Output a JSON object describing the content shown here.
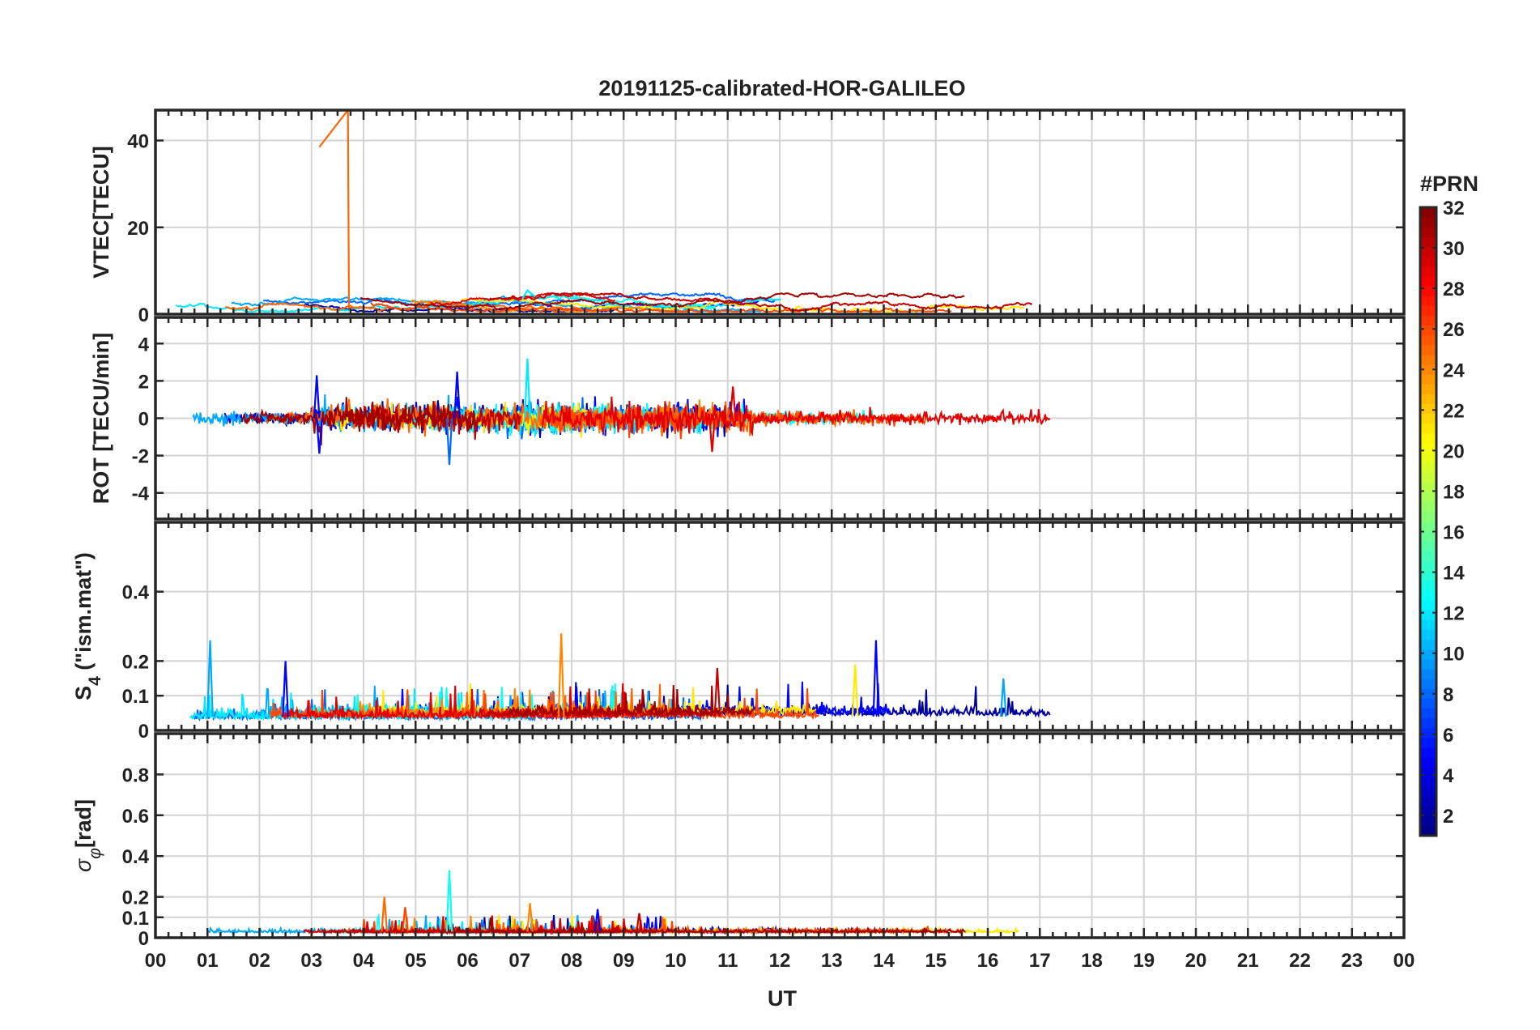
{
  "chart_data": {
    "type": "line",
    "title": "20191125-calibrated-HOR-GALILEO",
    "xlabel": "UT",
    "xlim": [
      0,
      24
    ],
    "x_tick_labels": [
      "00",
      "01",
      "02",
      "03",
      "04",
      "05",
      "06",
      "07",
      "08",
      "09",
      "10",
      "11",
      "12",
      "13",
      "14",
      "15",
      "16",
      "17",
      "18",
      "19",
      "20",
      "21",
      "22",
      "23",
      "00"
    ],
    "data_span_hours": [
      0,
      17.2
    ],
    "grid": true,
    "panels": [
      {
        "name": "vtec",
        "ylabel": "VTEC[TECU]",
        "ylim": [
          0,
          47
        ],
        "yticks": [
          0,
          20,
          40
        ],
        "ytick_labels": [
          "0",
          "20",
          "40"
        ],
        "typical_range": [
          1,
          5
        ],
        "features": [
          {
            "prn": 25,
            "x": [
              3.15,
              3.7,
              3.7,
              3.72,
              4.2
            ],
            "y": [
              38.5,
              47,
              47,
              1.5,
              1.5
            ]
          },
          {
            "prn": 12,
            "x": [
              7.05,
              7.15,
              7.3
            ],
            "y": [
              3.5,
              5.5,
              4.0
            ]
          }
        ]
      },
      {
        "name": "rot",
        "ylabel": "ROT [TECU/min]",
        "ylim": [
          -5.4,
          5.4
        ],
        "yticks": [
          -4,
          -2,
          0,
          2,
          4
        ],
        "ytick_labels": [
          "-4",
          "-2",
          "0",
          "2",
          "4"
        ],
        "typical_amplitude": 0.5,
        "features": [
          {
            "prn": 12,
            "x": 7.15,
            "y": 3.2
          },
          {
            "prn": 8,
            "x": 5.65,
            "y": -2.5
          },
          {
            "prn": 5,
            "x": 3.1,
            "y": 2.3
          },
          {
            "prn": 5,
            "x": 3.15,
            "y": -1.9
          },
          {
            "prn": 5,
            "x": 5.8,
            "y": 2.5
          },
          {
            "prn": 29,
            "x": 10.7,
            "y": -1.8
          },
          {
            "prn": 29,
            "x": 11.1,
            "y": 1.7
          }
        ]
      },
      {
        "name": "s4",
        "ylabel": "S4 (\"ism.mat\")",
        "ylabel_main": "S",
        "ylabel_sub": "4",
        "ylabel_rest": " (\"ism.mat\")",
        "ylim": [
          0,
          0.6
        ],
        "yticks": [
          0,
          0.1,
          0.2,
          0.4
        ],
        "ytick_labels": [
          "0",
          "0.1",
          "0.2",
          "0.4"
        ],
        "features": [
          {
            "prn": 10,
            "x": 1.05,
            "y": 0.26
          },
          {
            "prn": 24,
            "x": 7.8,
            "y": 0.28
          },
          {
            "prn": 5,
            "x": 13.85,
            "y": 0.26
          },
          {
            "prn": 21,
            "x": 13.45,
            "y": 0.19
          },
          {
            "prn": 5,
            "x": 2.5,
            "y": 0.2
          },
          {
            "prn": 30,
            "x": 10.8,
            "y": 0.18
          },
          {
            "prn": 10,
            "x": 16.3,
            "y": 0.15
          }
        ]
      },
      {
        "name": "sigma_phi",
        "ylabel": "σφ[rad]",
        "ylabel_main": "σ",
        "ylabel_sub": "φ",
        "ylabel_rest": "[rad]",
        "ylim": [
          0,
          1.0
        ],
        "yticks": [
          0,
          0.1,
          0.2,
          0.4,
          0.6,
          0.8
        ],
        "ytick_labels": [
          "0",
          "0.1",
          "0.2",
          "0.4",
          "0.6",
          "0.8"
        ],
        "features": [
          {
            "prn": 13,
            "x": 5.65,
            "y": 0.33
          },
          {
            "prn": 25,
            "x": 4.4,
            "y": 0.2
          },
          {
            "prn": 26,
            "x": 4.8,
            "y": 0.15
          },
          {
            "prn": 24,
            "x": 7.2,
            "y": 0.17
          },
          {
            "prn": 5,
            "x": 8.5,
            "y": 0.14
          },
          {
            "prn": 30,
            "x": 9.3,
            "y": 0.12
          }
        ]
      }
    ],
    "colorbar": {
      "label": "#PRN",
      "range": [
        1,
        32
      ],
      "ticks": [
        2,
        4,
        6,
        8,
        10,
        12,
        14,
        16,
        18,
        20,
        22,
        24,
        26,
        28,
        30,
        32
      ],
      "tick_labels": [
        "2",
        "4",
        "6",
        "8",
        "10",
        "12",
        "14",
        "16",
        "18",
        "20",
        "22",
        "24",
        "26",
        "28",
        "30",
        "32"
      ],
      "colormap": "jet"
    },
    "series": [
      {
        "prn": 2
      },
      {
        "prn": 5
      },
      {
        "prn": 8
      },
      {
        "prn": 10
      },
      {
        "prn": 12
      },
      {
        "prn": 13
      },
      {
        "prn": 21
      },
      {
        "prn": 24
      },
      {
        "prn": 25
      },
      {
        "prn": 26
      },
      {
        "prn": 29
      },
      {
        "prn": 30
      },
      {
        "prn": 31
      }
    ]
  }
}
